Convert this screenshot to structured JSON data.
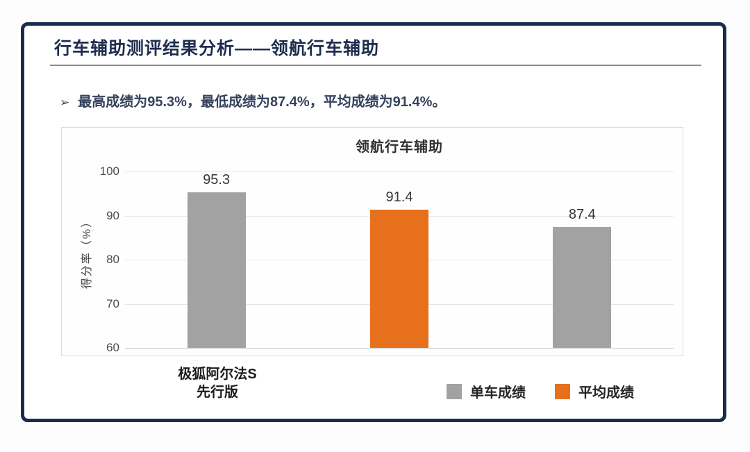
{
  "header": {
    "title": "行车辅助测评结果分析——领航行车辅助"
  },
  "summary": {
    "marker": "➢",
    "text": "最高成绩为95.3%，最低成绩为87.4%，平均成绩为91.4%。"
  },
  "colors": {
    "accent_navy": "#1b2b4d",
    "bar_gray": "#a2a2a2",
    "bar_orange": "#e7701d"
  },
  "chart_data": {
    "type": "bar",
    "title": "领航行车辅助",
    "ylabel": "得分率（%）",
    "ylim": [
      60,
      100
    ],
    "yticks": [
      100,
      90,
      80,
      70,
      60
    ],
    "grid": "horizontal",
    "x_category": {
      "lines": [
        "极狐阿尔法S",
        "先行版"
      ]
    },
    "bars": [
      {
        "category": "极狐阿尔法S 先行版",
        "series": "单车成绩",
        "value": 95.3,
        "label": "95.3",
        "color": "#a2a2a2"
      },
      {
        "category": "",
        "series": "平均成绩",
        "value": 91.4,
        "label": "91.4",
        "color": "#e7701d"
      },
      {
        "category": "",
        "series": "单车成绩",
        "value": 87.4,
        "label": "87.4",
        "color": "#a2a2a2"
      }
    ],
    "legend": [
      {
        "label": "单车成绩",
        "color": "#a2a2a2"
      },
      {
        "label": "平均成绩",
        "color": "#e7701d"
      }
    ],
    "legend_position": "bottom-right"
  }
}
